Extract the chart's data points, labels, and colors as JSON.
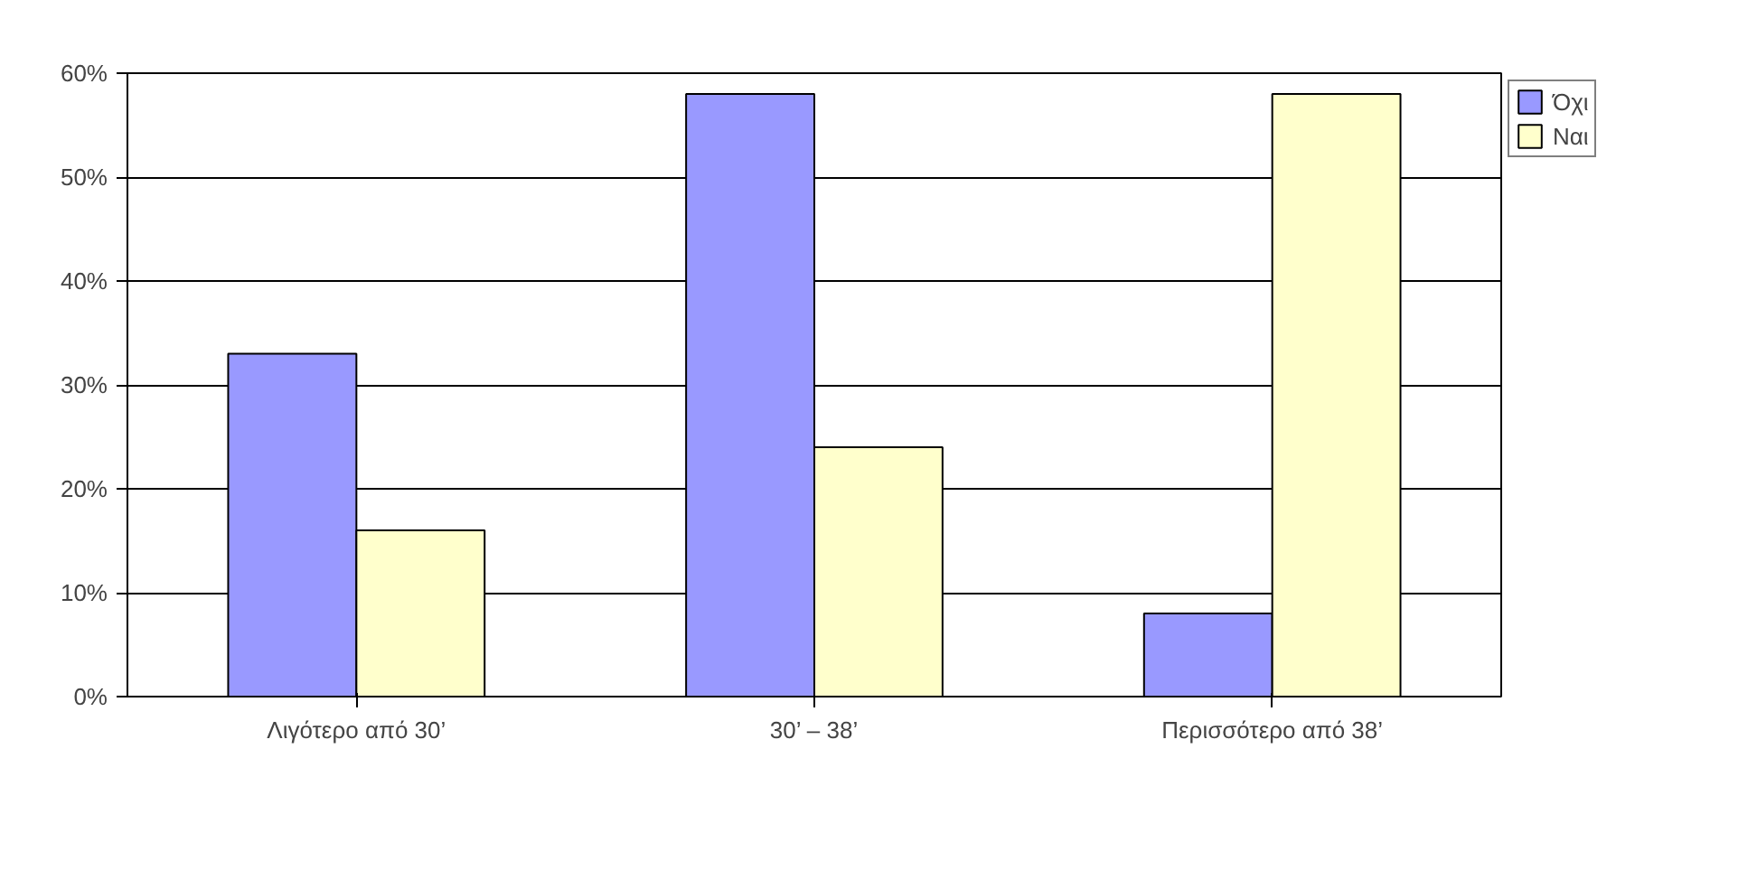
{
  "chart_data": {
    "type": "bar",
    "categories": [
      "Λιγότερο από 30’",
      "30’ – 38’",
      "Περισσότερο από 38’"
    ],
    "series": [
      {
        "name": "Όχι",
        "color": "#9999ff",
        "values": [
          33,
          58,
          8
        ]
      },
      {
        "name": "Ναι",
        "color": "#ffffcc",
        "values": [
          16,
          24,
          58
        ]
      }
    ],
    "ylim": [
      0,
      60
    ],
    "yticks": [
      {
        "value": 0,
        "label": "0%"
      },
      {
        "value": 10,
        "label": "10%"
      },
      {
        "value": 20,
        "label": "20%"
      },
      {
        "value": 30,
        "label": "30%"
      },
      {
        "value": 40,
        "label": "40%"
      },
      {
        "value": 50,
        "label": "50%"
      },
      {
        "value": 60,
        "label": "60%"
      }
    ],
    "grid": "y",
    "legend": "top right"
  }
}
